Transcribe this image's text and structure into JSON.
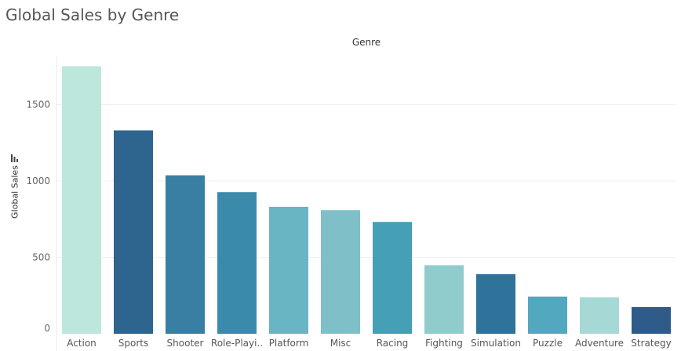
{
  "chart_data": {
    "type": "bar",
    "title": "Global Sales by Genre",
    "header": "Genre",
    "xlabel": "",
    "ylabel": "Global Sales",
    "ylim": [
      0,
      1800
    ],
    "yticks": [
      0,
      500,
      1000,
      1500
    ],
    "grid": true,
    "categories": [
      "Action",
      "Sports",
      "Shooter",
      "Role-Playi..",
      "Platform",
      "Misc",
      "Racing",
      "Fighting",
      "Simulation",
      "Puzzle",
      "Adventure",
      "Strategy"
    ],
    "values": [
      1751,
      1331,
      1037,
      927,
      831,
      809,
      732,
      449,
      390,
      243,
      239,
      175
    ],
    "colors": [
      "#bde6dc",
      "#2d658e",
      "#387fa3",
      "#3a8aab",
      "#69b5c4",
      "#7fc0c8",
      "#449fb7",
      "#91cccd",
      "#2f729a",
      "#52a8bf",
      "#a6d9d5",
      "#2d5b8a"
    ]
  },
  "icons": {
    "sort": "sort-descending-icon"
  }
}
